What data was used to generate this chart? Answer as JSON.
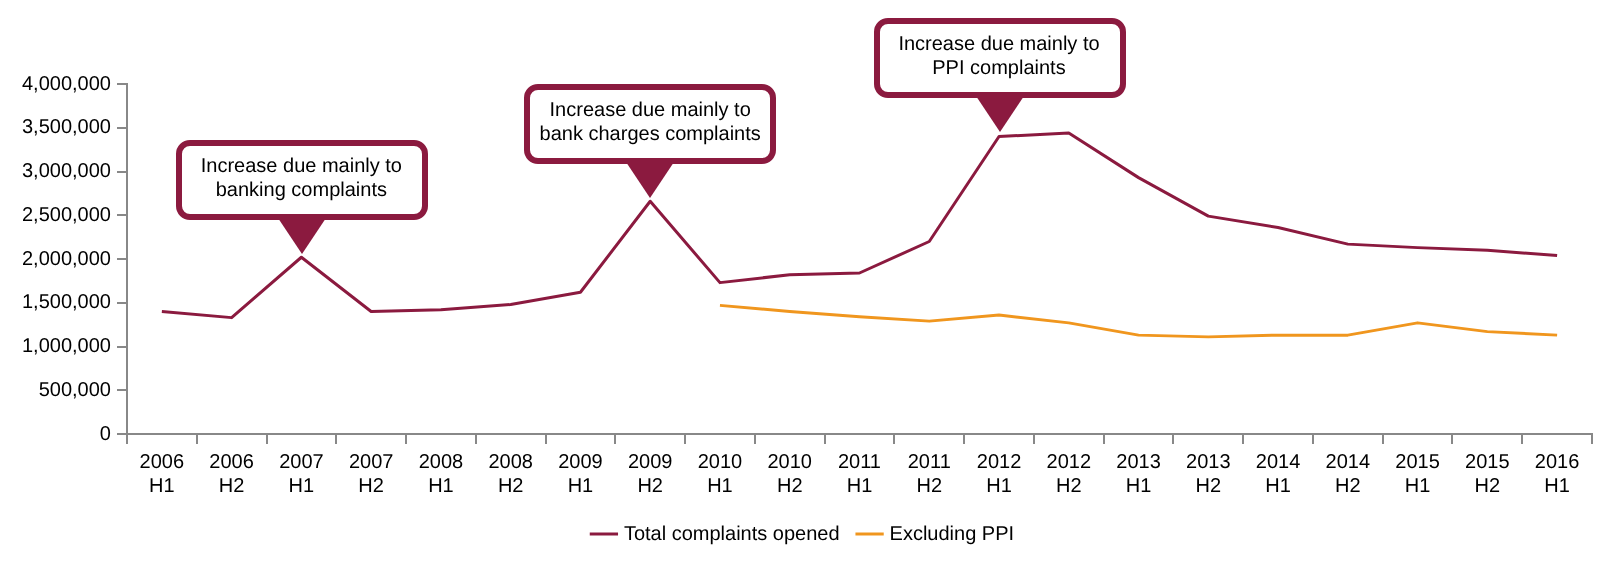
{
  "chart_data": {
    "type": "line",
    "categories": [
      "2006 H1",
      "2006 H2",
      "2007 H1",
      "2007 H2",
      "2008 H1",
      "2008 H2",
      "2009 H1",
      "2009 H2",
      "2010 H1",
      "2010 H2",
      "2011 H1",
      "2011 H2",
      "2012 H1",
      "2012 H2",
      "2013 H1",
      "2013 H2",
      "2014 H1",
      "2014 H2",
      "2015 H1",
      "2015 H2",
      "2016 H1"
    ],
    "series": [
      {
        "name": "Total complaints opened",
        "color": "#8b1a3f",
        "values": [
          1400000,
          1330000,
          2020000,
          1400000,
          1420000,
          1480000,
          1620000,
          2660000,
          1730000,
          1820000,
          1840000,
          2200000,
          3400000,
          3440000,
          2930000,
          2490000,
          2360000,
          2170000,
          2130000,
          2100000,
          2040000
        ]
      },
      {
        "name": "Excluding PPI",
        "color": "#f0961e",
        "values": [
          null,
          null,
          null,
          null,
          null,
          null,
          null,
          null,
          1470000,
          1400000,
          1340000,
          1290000,
          1360000,
          1270000,
          1130000,
          1110000,
          1130000,
          1130000,
          1270000,
          1170000,
          1130000
        ]
      }
    ],
    "ylim": [
      0,
      4000000
    ],
    "yticks": [
      {
        "value": 0,
        "label": "0"
      },
      {
        "value": 500000,
        "label": "500,000"
      },
      {
        "value": 1000000,
        "label": "1,000,000"
      },
      {
        "value": 1500000,
        "label": "1,500,000"
      },
      {
        "value": 2000000,
        "label": "2,000,000"
      },
      {
        "value": 2500000,
        "label": "2,500,000"
      },
      {
        "value": 3000000,
        "label": "3,000,000"
      },
      {
        "value": 3500000,
        "label": "3,500,000"
      },
      {
        "value": 4000000,
        "label": "4,000,000"
      }
    ],
    "grid": false,
    "legend": "bottom",
    "marker": "none",
    "line_style": "solid",
    "annotations": [
      {
        "text": "Increase due mainly to banking complaints",
        "x": "2007 H1",
        "y": 2020000
      },
      {
        "text": "Increase due mainly to bank charges complaints",
        "x": "2009 H2",
        "y": 2660000
      },
      {
        "text": "Increase due mainly to PPI complaints",
        "x": "2012 H1",
        "y": 3400000
      }
    ]
  }
}
